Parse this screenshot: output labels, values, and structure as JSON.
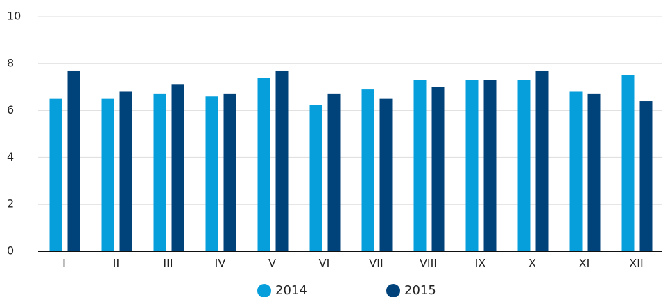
{
  "chart_data": {
    "type": "bar",
    "categories": [
      "I",
      "II",
      "III",
      "IV",
      "V",
      "VI",
      "VII",
      "VIII",
      "IX",
      "X",
      "XI",
      "XII"
    ],
    "series": [
      {
        "name": "2014",
        "color": "#069fdc",
        "values": [
          6.5,
          6.5,
          6.7,
          6.6,
          7.4,
          6.25,
          6.9,
          7.3,
          7.3,
          7.3,
          6.8,
          7.5
        ]
      },
      {
        "name": "2015",
        "color": "#00427a",
        "values": [
          7.7,
          6.8,
          7.1,
          6.7,
          7.7,
          6.7,
          6.5,
          7.0,
          7.3,
          7.7,
          6.7,
          6.4
        ]
      }
    ],
    "ylim": [
      0,
      10
    ],
    "yticks": [
      0,
      2,
      4,
      6,
      8,
      10
    ],
    "grid": true,
    "legend": "bottom"
  }
}
